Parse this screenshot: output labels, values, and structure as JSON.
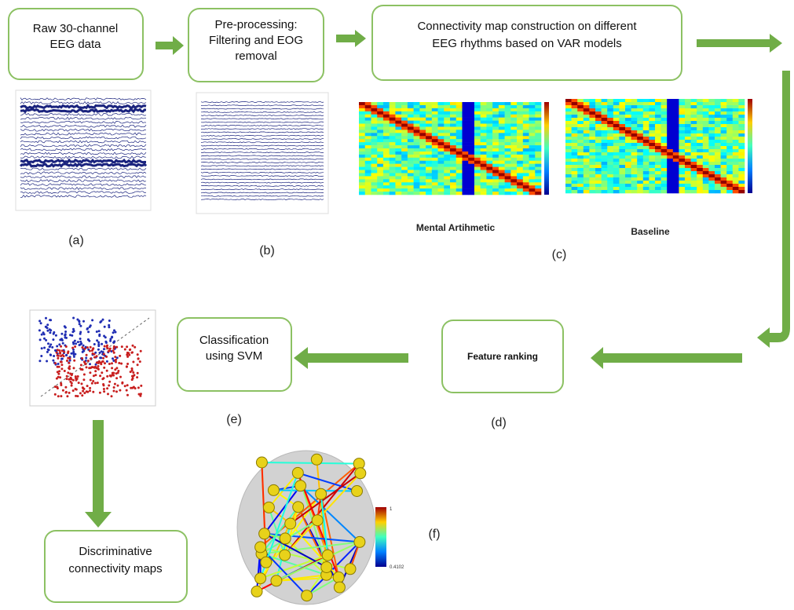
{
  "nodes": [
    {
      "lines": [
        "Raw 30-channel",
        "EEG data"
      ]
    },
    {
      "lines": [
        "Pre-processing:",
        "Filtering and EOG",
        "removal"
      ]
    },
    {
      "lines": [
        "Connectivity map construction on different",
        "EEG rhythms based on VAR models"
      ]
    },
    {
      "lines": [
        "Feature ranking"
      ]
    },
    {
      "lines": [
        "Classification",
        "using SVM"
      ]
    },
    {
      "lines": [
        "Discriminative",
        "connectivity maps"
      ]
    }
  ],
  "panel_labels": [
    "(a)",
    "(b)",
    "(c)",
    "(d)",
    "(e)",
    "(f)"
  ],
  "heatmap_captions": [
    "Mental Artihmetic",
    "Baseline"
  ],
  "colorbar_labels": [
    "1",
    "0.4102"
  ]
}
